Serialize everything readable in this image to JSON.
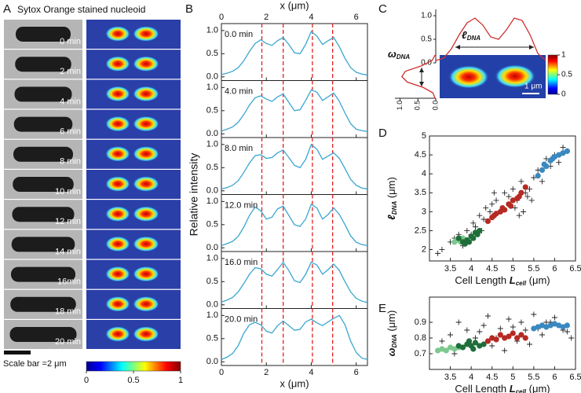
{
  "panel_labels": [
    "A",
    "B",
    "C",
    "D",
    "E"
  ],
  "panel_a": {
    "title": "Sytox Orange stained nucleoid",
    "times": [
      "0 min",
      "2 min",
      "4 min",
      "6 min",
      "8 min",
      "10 min",
      "12 min",
      "14 min",
      "16min",
      "18 min",
      "20 min"
    ],
    "scale_bar": "Scale bar =2 μm",
    "colorbar_lim": [
      0,
      1
    ],
    "colorbar_ticks": [
      0,
      0.5,
      1
    ]
  },
  "panel_c": {
    "length_label": [
      "ℓ",
      "DNA"
    ],
    "width_label": [
      "ω",
      "DNA"
    ],
    "scale_bar": "1 μm",
    "colorbar_lim": [
      0,
      1
    ],
    "colorbar_ticks": [
      1,
      0.5,
      0
    ]
  },
  "chart_data": [
    {
      "type": "line",
      "xlabel": "x (μm)",
      "ylabel": "Relative intensity",
      "xlim": [
        0,
        6.5
      ],
      "xticks": [
        0,
        2,
        4,
        6
      ],
      "ylim": [
        -0.08,
        1.15
      ],
      "yticks": [
        {
          "value": 0,
          "label": "0.0"
        },
        {
          "value": 0.5,
          "label": "0.5"
        },
        {
          "value": 1,
          "label": "1.0"
        }
      ],
      "markers": [
        1.8,
        2.75,
        4.05,
        4.95
      ],
      "marker_color": "#e02020",
      "x": [
        0,
        0.25,
        0.5,
        0.75,
        1,
        1.25,
        1.5,
        1.75,
        2,
        2.25,
        2.5,
        2.75,
        3,
        3.25,
        3.5,
        3.75,
        4,
        4.25,
        4.5,
        4.75,
        5,
        5.25,
        5.5,
        5.75,
        6,
        6.25,
        6.5
      ],
      "series": [
        {
          "name": "0.0 min",
          "color": "#3aa6d0",
          "values": [
            0.05,
            0.08,
            0.12,
            0.2,
            0.35,
            0.55,
            0.72,
            0.8,
            0.72,
            0.68,
            0.78,
            0.85,
            0.7,
            0.52,
            0.5,
            0.7,
            0.98,
            0.88,
            0.7,
            0.78,
            0.85,
            0.65,
            0.4,
            0.2,
            0.1,
            0.06,
            0.04
          ]
        },
        {
          "name": "4.0 min",
          "color": "#3aa6d0",
          "values": [
            0.06,
            0.1,
            0.15,
            0.25,
            0.42,
            0.62,
            0.78,
            0.82,
            0.75,
            0.7,
            0.8,
            0.86,
            0.68,
            0.5,
            0.52,
            0.72,
            0.95,
            0.9,
            0.72,
            0.8,
            0.88,
            0.7,
            0.45,
            0.22,
            0.1,
            0.07,
            0.05
          ]
        },
        {
          "name": "8.0 min",
          "color": "#3aa6d0",
          "values": [
            0.04,
            0.07,
            0.12,
            0.22,
            0.4,
            0.6,
            0.76,
            0.78,
            0.7,
            0.72,
            0.82,
            0.88,
            0.72,
            0.55,
            0.5,
            0.68,
            1.0,
            0.9,
            0.68,
            0.75,
            0.82,
            0.7,
            0.48,
            0.25,
            0.12,
            0.06,
            0.04
          ]
        },
        {
          "name": "12.0 min",
          "color": "#3aa6d0",
          "values": [
            0.05,
            0.09,
            0.14,
            0.25,
            0.45,
            0.7,
            0.88,
            0.8,
            0.62,
            0.66,
            0.84,
            0.9,
            0.7,
            0.5,
            0.46,
            0.62,
            0.94,
            0.86,
            0.62,
            0.72,
            0.86,
            0.72,
            0.5,
            0.26,
            0.12,
            0.07,
            0.05
          ]
        },
        {
          "name": "16.0 min",
          "color": "#3aa6d0",
          "values": [
            0.06,
            0.1,
            0.16,
            0.28,
            0.46,
            0.66,
            0.8,
            0.78,
            0.66,
            0.62,
            0.76,
            0.92,
            0.74,
            0.52,
            0.48,
            0.66,
            0.92,
            0.86,
            0.66,
            0.76,
            0.88,
            0.74,
            0.5,
            0.28,
            0.14,
            0.08,
            0.05
          ]
        },
        {
          "name": "20.0 min",
          "color": "#3aa6d0",
          "values": [
            0.05,
            0.1,
            0.18,
            0.35,
            0.62,
            0.8,
            0.85,
            0.8,
            0.66,
            0.62,
            0.78,
            0.88,
            0.78,
            0.68,
            0.7,
            0.86,
            0.92,
            0.84,
            0.78,
            0.86,
            0.94,
            1.0,
            0.8,
            0.45,
            0.2,
            0.08,
            0.05
          ]
        }
      ]
    },
    {
      "type": "line",
      "xlim": [
        0,
        14
      ],
      "ylim": [
        0,
        1.1
      ],
      "yticks": [
        {
          "value": 1,
          "label": "1.0"
        },
        {
          "value": 0.5,
          "label": "0.5"
        },
        {
          "value": 0,
          "label": "0.0"
        }
      ],
      "x": [
        0,
        1,
        2,
        3,
        4,
        5,
        6,
        7,
        8,
        9,
        10,
        11,
        12,
        13,
        14
      ],
      "color": "#d03030",
      "values": [
        0.05,
        0.1,
        0.3,
        0.6,
        0.85,
        0.95,
        0.8,
        0.55,
        0.5,
        0.7,
        0.95,
        0.9,
        0.6,
        0.2,
        0.05
      ]
    },
    {
      "type": "line",
      "orientation": "horizontal-reversed",
      "xlim": [
        0,
        8
      ],
      "ylim": [
        0,
        1.1
      ],
      "yticks": [
        {
          "value": 1,
          "label": "1.0"
        },
        {
          "value": 0.5,
          "label": "0.5"
        },
        {
          "value": 0,
          "label": "0.0"
        }
      ],
      "x": [
        0,
        1,
        2,
        3,
        4,
        5,
        6,
        7,
        8
      ],
      "color": "#d03030",
      "values": [
        0.02,
        0.1,
        0.4,
        0.85,
        0.95,
        0.8,
        0.35,
        0.08,
        0.02
      ]
    },
    {
      "type": "scatter",
      "xlabel": [
        "Cell Length ",
        "L",
        "cell",
        " (μm)"
      ],
      "ylabel": [
        "ℓ",
        "DNA",
        " (μm)"
      ],
      "xlim": [
        3,
        6.5
      ],
      "xticks": [
        3.5,
        4,
        4.5,
        5,
        5.5,
        6,
        6.5
      ],
      "ylim": [
        1.7,
        5
      ],
      "yticks": [
        2,
        2.5,
        3,
        3.5,
        4,
        4.5,
        5
      ],
      "series": [
        {
          "marker": "plus",
          "color": "#222222",
          "x": [
            3.2,
            3.3,
            3.5,
            3.6,
            3.8,
            3.9,
            4.0,
            4.1,
            4.2,
            4.3,
            4.35,
            4.45,
            4.5,
            4.6,
            4.7,
            4.8,
            4.9,
            5.0,
            5.1,
            5.2,
            5.3,
            5.4,
            5.5,
            5.6,
            5.7,
            5.8,
            5.9,
            6.0,
            6.1,
            6.2,
            6.3,
            4.25,
            4.55,
            5.05,
            5.45,
            3.7,
            4.05,
            5.25,
            5.35,
            5.15
          ],
          "values": [
            1.9,
            2.0,
            2.2,
            2.3,
            2.1,
            2.5,
            2.4,
            2.6,
            2.9,
            2.8,
            3.1,
            3.0,
            3.2,
            3.3,
            3.0,
            3.5,
            3.4,
            3.6,
            3.3,
            3.8,
            3.5,
            3.6,
            3.9,
            4.1,
            3.8,
            4.4,
            4.2,
            4.5,
            4.3,
            4.7,
            4.6,
            2.5,
            3.5,
            3.1,
            3.3,
            2.4,
            2.7,
            3.0,
            3.4,
            2.9
          ]
        },
        {
          "marker": "circle",
          "color": "#7cc88e",
          "x": [
            3.6,
            3.65,
            3.7,
            3.75,
            3.8,
            3.85
          ],
          "values": [
            2.2,
            2.25,
            2.3,
            2.2,
            2.3,
            2.25
          ]
        },
        {
          "marker": "circle",
          "color": "#1f6e3a",
          "x": [
            3.7,
            3.8,
            3.9,
            4.0,
            4.1,
            4.2,
            3.95,
            4.05,
            3.85,
            4.15
          ],
          "values": [
            2.3,
            2.2,
            2.25,
            2.35,
            2.45,
            2.5,
            2.2,
            2.3,
            2.15,
            2.4
          ]
        },
        {
          "marker": "circle",
          "color": "#b52a22",
          "x": [
            4.4,
            4.5,
            4.6,
            4.7,
            4.8,
            4.9,
            5.0,
            5.1,
            5.2,
            5.3,
            4.75,
            4.95,
            5.15,
            4.55
          ],
          "values": [
            2.75,
            2.85,
            2.95,
            3.0,
            3.05,
            3.2,
            3.3,
            3.35,
            3.5,
            3.65,
            3.1,
            3.15,
            3.4,
            2.9
          ]
        },
        {
          "marker": "circle",
          "color": "#3a88c0",
          "x": [
            5.6,
            5.7,
            5.8,
            5.9,
            6.0,
            6.1,
            6.2,
            6.3,
            5.75,
            5.95
          ],
          "values": [
            3.95,
            4.1,
            4.2,
            4.35,
            4.45,
            4.5,
            4.55,
            4.6,
            4.25,
            4.4
          ]
        }
      ]
    },
    {
      "type": "scatter",
      "xlabel": [
        "Cell Length ",
        "L",
        "cell",
        " (μm)"
      ],
      "ylabel": [
        "ω",
        "DNA",
        " (μm)"
      ],
      "xlim": [
        3,
        6.5
      ],
      "xticks": [
        3.5,
        4,
        4.5,
        5,
        5.5,
        6,
        6.5
      ],
      "ylim": [
        0.6,
        1.06
      ],
      "yticks": [
        0.7,
        0.8,
        0.9
      ],
      "series": [
        {
          "marker": "plus",
          "color": "#222222",
          "x": [
            3.3,
            3.5,
            3.7,
            3.9,
            4.1,
            4.3,
            4.5,
            4.7,
            4.9,
            5.1,
            5.3,
            5.5,
            5.7,
            5.9,
            6.1,
            6.3,
            3.6,
            4.0,
            4.4,
            4.8,
            5.2,
            5.6,
            6.0,
            6.4,
            4.2,
            4.6,
            5.0,
            5.4,
            5.8,
            6.2
          ],
          "values": [
            0.78,
            0.82,
            0.9,
            0.85,
            0.8,
            0.88,
            0.75,
            0.86,
            0.92,
            0.78,
            0.85,
            0.95,
            0.82,
            0.9,
            0.88,
            0.84,
            0.7,
            0.76,
            0.94,
            0.72,
            0.9,
            0.86,
            0.93,
            0.8,
            0.84,
            0.8,
            0.87,
            0.76,
            0.9,
            0.85
          ]
        },
        {
          "marker": "circle",
          "color": "#7cc88e",
          "x": [
            3.2,
            3.3,
            3.4,
            3.5,
            3.6,
            3.7
          ],
          "values": [
            0.72,
            0.73,
            0.72,
            0.74,
            0.73,
            0.74
          ]
        },
        {
          "marker": "circle",
          "color": "#1f6e3a",
          "x": [
            3.7,
            3.8,
            3.9,
            4.0,
            4.1,
            4.2,
            4.3,
            3.95,
            4.05
          ],
          "values": [
            0.75,
            0.74,
            0.76,
            0.75,
            0.77,
            0.75,
            0.76,
            0.78,
            0.73
          ]
        },
        {
          "marker": "circle",
          "color": "#b52a22",
          "x": [
            4.4,
            4.5,
            4.6,
            4.7,
            4.8,
            4.9,
            5.0,
            5.1,
            5.2,
            5.3
          ],
          "values": [
            0.78,
            0.8,
            0.79,
            0.82,
            0.8,
            0.81,
            0.83,
            0.8,
            0.82,
            0.8
          ]
        },
        {
          "marker": "circle",
          "color": "#3a88c0",
          "x": [
            5.5,
            5.6,
            5.7,
            5.8,
            5.9,
            6.0,
            6.1,
            6.2,
            6.3
          ],
          "values": [
            0.86,
            0.87,
            0.88,
            0.87,
            0.88,
            0.89,
            0.88,
            0.87,
            0.88
          ]
        }
      ]
    }
  ]
}
